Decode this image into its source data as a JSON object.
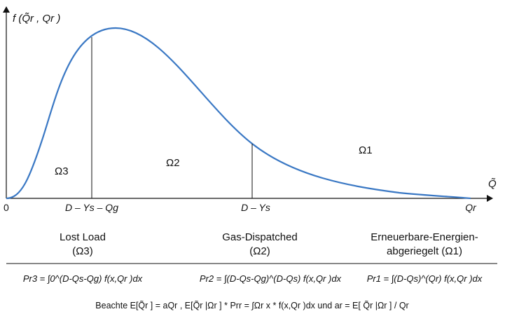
{
  "y_axis_label": "f (Q̃r , Qr )",
  "x_axis_label": "Q̃",
  "regions": {
    "omega3": "Ω3",
    "omega2": "Ω2",
    "omega1": "Ω1"
  },
  "ticks": {
    "origin": "0",
    "t1": "D – Ys – Qg",
    "t2": "D – Ys",
    "t3": "Qr"
  },
  "categories": {
    "c1": {
      "line1": "Lost Load",
      "line2": "(Ω3)"
    },
    "c2": {
      "line1": "Gas-Dispatched",
      "line2": "(Ω2)"
    },
    "c3": {
      "line1": "Erneuerbare-Energien-",
      "line2": "abgeriegelt (Ω1)"
    }
  },
  "formulas": {
    "f1": "Pr3 = ∫0^(D-Qs-Qg) f(x,Qr )dx",
    "f2": "Pr2 = ∫(D-Qs-Qg)^(D-Qs) f(x,Qr )dx",
    "f3": "Pr1 = ∫(D-Qs)^(Qr) f(x,Qr )dx"
  },
  "note": "Beachte E[Q̃r ] = aQr , E[Q̃r |Ωr ] * Prr = ∫Ωr x * f(x,Qr )dx und ar = E[ Q̃r |Ωr ] / Qr",
  "colors": {
    "curve": "#3a78c4",
    "axis": "#111111"
  }
}
